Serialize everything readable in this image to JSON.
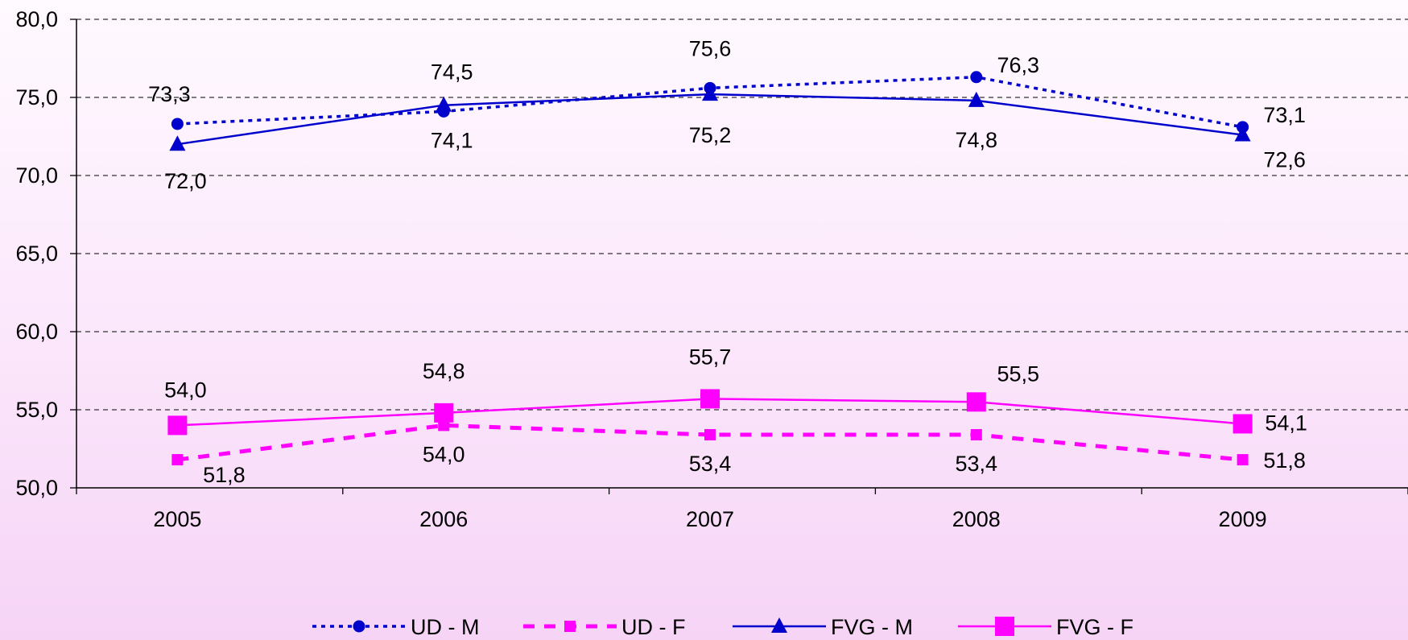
{
  "chart_data": {
    "type": "line",
    "x": [
      "2005",
      "2006",
      "2007",
      "2008",
      "2009"
    ],
    "ylim": [
      50,
      80
    ],
    "yticks": [
      "50,0",
      "55,0",
      "60,0",
      "65,0",
      "70,0",
      "75,0",
      "80,0"
    ],
    "grid": true,
    "legend_position": "bottom",
    "series": [
      {
        "name": "UD - M",
        "values": [
          73.3,
          74.1,
          75.6,
          76.3,
          73.1
        ],
        "labels": [
          "73,3",
          "74,1",
          "75,6",
          "76,3",
          "73,1"
        ],
        "color": "#0000cc",
        "line": "dotted",
        "marker": "circle"
      },
      {
        "name": "UD - F",
        "values": [
          51.8,
          54.0,
          53.4,
          53.4,
          51.8
        ],
        "labels": [
          "51,8",
          "54,0",
          "53,4",
          "53,4",
          "51,8"
        ],
        "color": "#ff00ff",
        "line": "dashed",
        "marker": "square-small"
      },
      {
        "name": "FVG - M",
        "values": [
          72.0,
          74.5,
          75.2,
          74.8,
          72.6
        ],
        "labels": [
          "72,0",
          "74,5",
          "75,2",
          "74,8",
          "72,6"
        ],
        "color": "#0000cc",
        "line": "solid",
        "marker": "triangle"
      },
      {
        "name": "FVG - F",
        "values": [
          54.0,
          54.8,
          55.7,
          55.5,
          54.1
        ],
        "labels": [
          "54,0",
          "54,8",
          "55,7",
          "55,5",
          "54,1"
        ],
        "color": "#ff00ff",
        "line": "solid",
        "marker": "square-large"
      }
    ]
  }
}
